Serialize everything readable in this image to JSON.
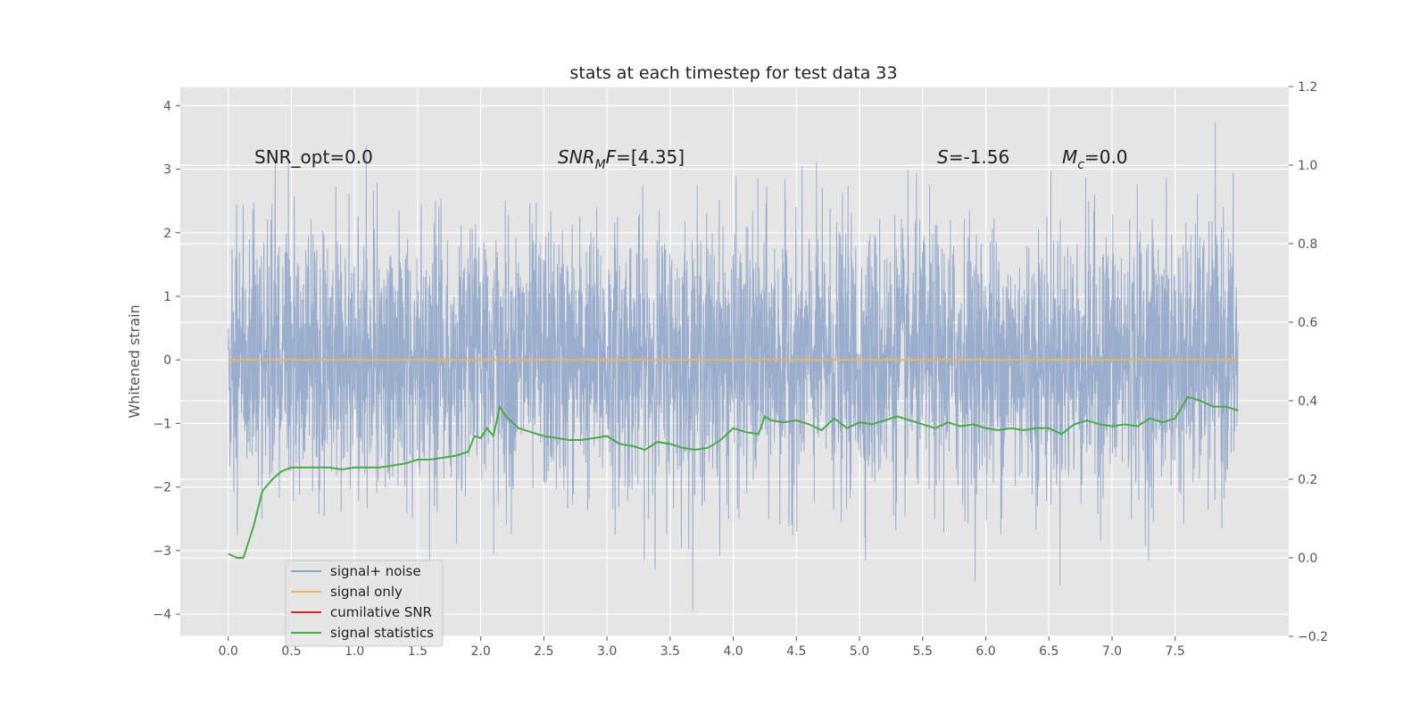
{
  "chart_data": {
    "type": "line",
    "title": "stats at each timestep for test data 33",
    "ylabel": "Whitened strain",
    "xlim": [
      -0.38,
      8.4
    ],
    "ylim": [
      -4.35,
      4.3
    ],
    "y2lim": [
      -0.2,
      1.2
    ],
    "x_ticks": [
      "0.0",
      "0.5",
      "1.0",
      "1.5",
      "2.0",
      "2.5",
      "3.0",
      "3.5",
      "4.0",
      "4.5",
      "5.0",
      "5.5",
      "6.0",
      "6.5",
      "7.0",
      "7.5"
    ],
    "y_ticks": [
      "−4",
      "−3",
      "−2",
      "−1",
      "0",
      "1",
      "2",
      "3",
      "4"
    ],
    "y2_ticks": [
      "−0.2",
      "0.0",
      "0.2",
      "0.4",
      "0.6",
      "0.8",
      "1.0",
      "1.2"
    ],
    "grid": true,
    "legend_position": "lower-left",
    "annotations": [
      {
        "text": "SNR_opt=0.0",
        "x": 0.2,
        "y": 3.1
      },
      {
        "text": "SNR_MF=[4.35]",
        "x": 2.6,
        "y": 3.1
      },
      {
        "text": "S=-1.56",
        "x": 5.6,
        "y": 3.1
      },
      {
        "text": "M_c=0.0",
        "x": 6.6,
        "y": 3.1
      }
    ],
    "series": [
      {
        "name": "signal+ noise",
        "axis": "left",
        "color": "#8ea3c9",
        "style": "noise",
        "x_range": [
          0.0,
          8.0
        ],
        "y_range_typical": [
          -2.0,
          2.2
        ],
        "y_extremes": [
          -3.95,
          3.92
        ]
      },
      {
        "name": "signal only",
        "axis": "left",
        "color": "#f0b557",
        "x": [
          0.0,
          8.0
        ],
        "y": [
          0.0,
          0.0
        ]
      },
      {
        "name": "cumilative SNR",
        "axis": "right",
        "color": "#d62728",
        "x": [],
        "y": []
      },
      {
        "name": "signal statistics",
        "axis": "right",
        "color": "#4aaa4a",
        "x": [
          0.0,
          0.07,
          0.12,
          0.2,
          0.27,
          0.35,
          0.42,
          0.5,
          0.6,
          0.7,
          0.8,
          0.9,
          1.0,
          1.1,
          1.2,
          1.3,
          1.4,
          1.5,
          1.6,
          1.7,
          1.8,
          1.9,
          1.95,
          2.0,
          2.05,
          2.1,
          2.15,
          2.2,
          2.25,
          2.3,
          2.4,
          2.5,
          2.6,
          2.7,
          2.8,
          2.9,
          3.0,
          3.1,
          3.2,
          3.3,
          3.4,
          3.5,
          3.6,
          3.7,
          3.8,
          3.9,
          4.0,
          4.1,
          4.2,
          4.25,
          4.3,
          4.4,
          4.5,
          4.6,
          4.7,
          4.8,
          4.9,
          5.0,
          5.1,
          5.2,
          5.3,
          5.4,
          5.5,
          5.6,
          5.7,
          5.8,
          5.9,
          6.0,
          6.1,
          6.2,
          6.3,
          6.4,
          6.5,
          6.6,
          6.7,
          6.8,
          6.9,
          7.0,
          7.1,
          7.2,
          7.3,
          7.4,
          7.5,
          7.6,
          7.7,
          7.8,
          7.9,
          8.0
        ],
        "y": [
          0.01,
          0.0,
          0.0,
          0.08,
          0.17,
          0.2,
          0.22,
          0.23,
          0.23,
          0.23,
          0.23,
          0.225,
          0.23,
          0.23,
          0.23,
          0.235,
          0.24,
          0.25,
          0.25,
          0.255,
          0.26,
          0.27,
          0.31,
          0.305,
          0.33,
          0.31,
          0.385,
          0.36,
          0.345,
          0.33,
          0.32,
          0.31,
          0.305,
          0.3,
          0.3,
          0.305,
          0.31,
          0.29,
          0.285,
          0.275,
          0.295,
          0.29,
          0.28,
          0.275,
          0.28,
          0.3,
          0.33,
          0.32,
          0.315,
          0.36,
          0.35,
          0.345,
          0.35,
          0.34,
          0.325,
          0.355,
          0.33,
          0.345,
          0.34,
          0.35,
          0.36,
          0.35,
          0.34,
          0.33,
          0.345,
          0.335,
          0.34,
          0.33,
          0.325,
          0.33,
          0.325,
          0.33,
          0.33,
          0.315,
          0.34,
          0.35,
          0.34,
          0.335,
          0.34,
          0.335,
          0.355,
          0.345,
          0.355,
          0.41,
          0.4,
          0.385,
          0.385,
          0.375
        ]
      }
    ]
  }
}
